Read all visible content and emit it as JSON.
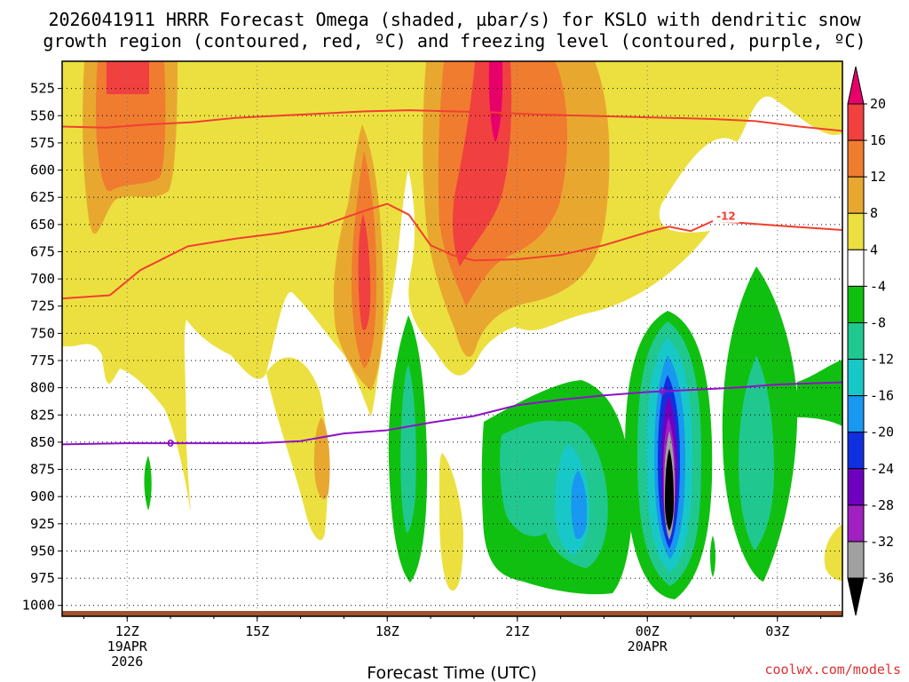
{
  "colors": {
    "dgz_contour": "#f04030",
    "freezing_contour": "#9010c8",
    "ground": "#a0522d",
    "credit": "#e03030"
  },
  "chart_data": {
    "type": "heatmap",
    "title_line1": "2026041911 HRRR Forecast Omega (shaded, µbar/s) for KSLO with dendritic snow",
    "title_line2": "growth region (contoured, red, ºC) and freezing level (contoured, purple, ºC)",
    "xlabel": "Forecast Time (UTC)",
    "credit": "coolwx.com/models",
    "x_range_hours": [
      10.5,
      28.5
    ],
    "y_range_hpa": [
      500,
      1010
    ],
    "y_ticks": [
      525,
      550,
      575,
      600,
      625,
      650,
      675,
      700,
      725,
      750,
      775,
      800,
      825,
      850,
      875,
      900,
      925,
      950,
      975,
      1000
    ],
    "x_ticks": [
      {
        "hour": 12,
        "label": "12Z",
        "sub1": "19APR",
        "sub2": "2026"
      },
      {
        "hour": 15,
        "label": "15Z",
        "sub1": "",
        "sub2": ""
      },
      {
        "hour": 18,
        "label": "18Z",
        "sub1": "",
        "sub2": ""
      },
      {
        "hour": 21,
        "label": "21Z",
        "sub1": "",
        "sub2": ""
      },
      {
        "hour": 24,
        "label": "00Z",
        "sub1": "20APR",
        "sub2": ""
      },
      {
        "hour": 27,
        "label": "03Z",
        "sub1": "",
        "sub2": ""
      }
    ],
    "colorbar": {
      "levels": [
        20,
        16,
        12,
        8,
        4,
        -4,
        -8,
        -12,
        -16,
        -20,
        -24,
        -28,
        -32,
        -36
      ],
      "labels": [
        "20",
        "16",
        "12",
        "8",
        "4",
        "-4",
        "-8",
        "-12",
        "-16",
        "-20",
        "-24",
        "-28",
        "-32",
        "-36"
      ],
      "colors": [
        "#e8006a",
        "#f04040",
        "#f07c30",
        "#e8a830",
        "#ece040",
        "#ffffff",
        "#10c010",
        "#20c890",
        "#18c8c8",
        "#1898f0",
        "#1030e0",
        "#7000c0",
        "#a020c0",
        "#a0a0a0",
        "#000000"
      ]
    },
    "contours": {
      "dgz_upper_-18C": {
        "label": "",
        "hours": [
          10.5,
          11.5,
          12.5,
          13.5,
          14.5,
          15.5,
          16.5,
          17.5,
          18.5,
          19.5,
          20.5,
          21.5,
          22.5,
          23.5,
          24.5,
          25.5,
          26.5,
          27.5,
          28.5
        ],
        "p": [
          560,
          561,
          558,
          556,
          552,
          550,
          548,
          546,
          545,
          546,
          547,
          549,
          550,
          551,
          552,
          553,
          555,
          560,
          564
        ]
      },
      "dgz_lower_-12C": {
        "label": "-12",
        "hours": [
          10.5,
          11.6,
          12.3,
          13.4,
          14.5,
          15.5,
          16.5,
          17.5,
          18.0,
          18.5,
          19.0,
          19.5,
          20.0,
          21.0,
          22.0,
          23.0,
          24.0,
          24.5,
          25.0,
          25.5,
          26.0,
          27.0,
          28.5
        ],
        "p": [
          718,
          715,
          692,
          670,
          663,
          658,
          651,
          637,
          631,
          641,
          669,
          678,
          683,
          682,
          678,
          669,
          657,
          652,
          656,
          647,
          648,
          651,
          655
        ]
      },
      "freezing_0C": {
        "label": "0",
        "hours": [
          10.5,
          12.0,
          13.0,
          14.0,
          15.0,
          16.0,
          17.0,
          18.0,
          19.0,
          20.0,
          21.0,
          22.0,
          23.0,
          24.0,
          25.0,
          26.0,
          27.0,
          28.5
        ],
        "p": [
          852,
          851,
          851,
          851,
          851,
          849,
          842,
          839,
          832,
          826,
          816,
          811,
          807,
          804,
          802,
          800,
          797,
          795
        ]
      }
    },
    "omega_features": [
      {
        "level": 4,
        "h0": 10.8,
        "h1": 28.5,
        "p0": 500,
        "p1": 700,
        "desc": "upward motion region"
      },
      {
        "level": 12,
        "h0": 11.7,
        "h1": 12.9,
        "p0": 500,
        "p1": 600
      },
      {
        "level": 16,
        "h0": 20.9,
        "h1": 21.2,
        "p0": 500,
        "p1": 620
      },
      {
        "level": 20,
        "h0": 20.9,
        "h1": 21.1,
        "p0": 500,
        "p1": 560
      },
      {
        "level": 16,
        "h0": 17.9,
        "h1": 18.1,
        "p0": 620,
        "p1": 710
      },
      {
        "level": -8,
        "h0": 18.8,
        "h1": 19.5,
        "p0": 700,
        "p1": 960
      },
      {
        "level": -12,
        "h0": 21.8,
        "h1": 23.8,
        "p0": 760,
        "p1": 970
      },
      {
        "level": -36,
        "h0": 24.7,
        "h1": 25.3,
        "p0": 780,
        "p1": 950
      },
      {
        "level": -8,
        "h0": 26.1,
        "h1": 27.8,
        "p0": 650,
        "p1": 950
      }
    ]
  }
}
